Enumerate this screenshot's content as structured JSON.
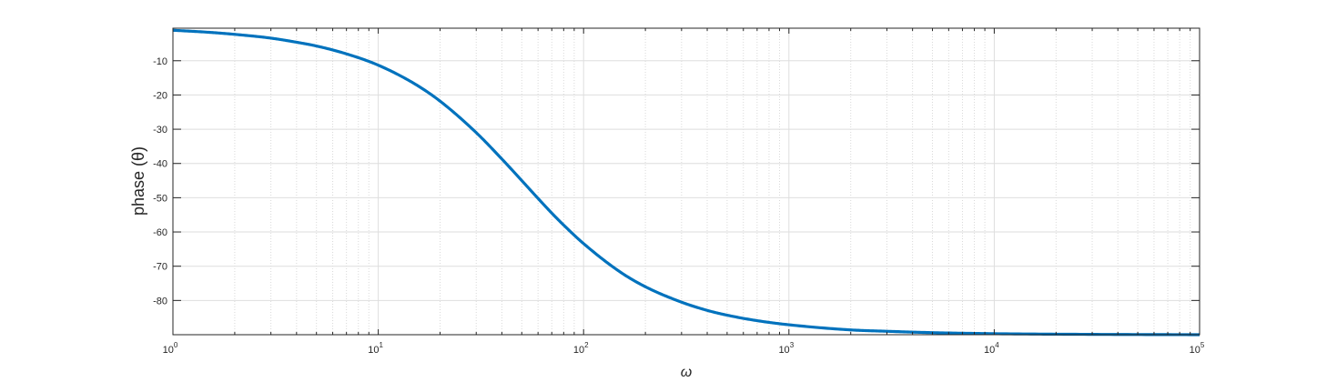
{
  "chart_data": {
    "type": "line",
    "title": "",
    "xlabel": "ω",
    "ylabel": "phase (θ)",
    "xscale": "log",
    "xlim": [
      1,
      100000
    ],
    "ylim": [
      -90,
      -0.5
    ],
    "grid": true,
    "minor_grid": true,
    "line_color": "#0072BD",
    "x_ticks": [
      {
        "value": 1,
        "base": "10",
        "exp": "0"
      },
      {
        "value": 10,
        "base": "10",
        "exp": "1"
      },
      {
        "value": 100,
        "base": "10",
        "exp": "2"
      },
      {
        "value": 1000,
        "base": "10",
        "exp": "3"
      },
      {
        "value": 10000,
        "base": "10",
        "exp": "4"
      },
      {
        "value": 100000,
        "base": "10",
        "exp": "5"
      }
    ],
    "y_ticks": [
      {
        "value": -10,
        "label": "-10"
      },
      {
        "value": -20,
        "label": "-20"
      },
      {
        "value": -30,
        "label": "-30"
      },
      {
        "value": -40,
        "label": "-40"
      },
      {
        "value": -50,
        "label": "-50"
      },
      {
        "value": -60,
        "label": "-60"
      },
      {
        "value": -70,
        "label": "-70"
      },
      {
        "value": -80,
        "label": "-80"
      }
    ],
    "series": [
      {
        "x": [
          1,
          1.5,
          2,
          3,
          4,
          5,
          7,
          10,
          15,
          20,
          30,
          40,
          50,
          60,
          70,
          80,
          100,
          150,
          200,
          300,
          400,
          500,
          700,
          1000,
          2000,
          3000,
          5000,
          10000,
          30000,
          100000
        ],
        "y": [
          -1.1,
          -1.7,
          -2.3,
          -3.4,
          -4.6,
          -5.7,
          -8.0,
          -11.3,
          -16.7,
          -21.8,
          -31.0,
          -38.7,
          -45.0,
          -50.2,
          -54.5,
          -58.0,
          -63.4,
          -71.6,
          -76.0,
          -80.5,
          -82.9,
          -84.3,
          -85.9,
          -87.1,
          -88.6,
          -89.0,
          -89.4,
          -89.7,
          -89.9,
          -90.0
        ]
      }
    ]
  }
}
